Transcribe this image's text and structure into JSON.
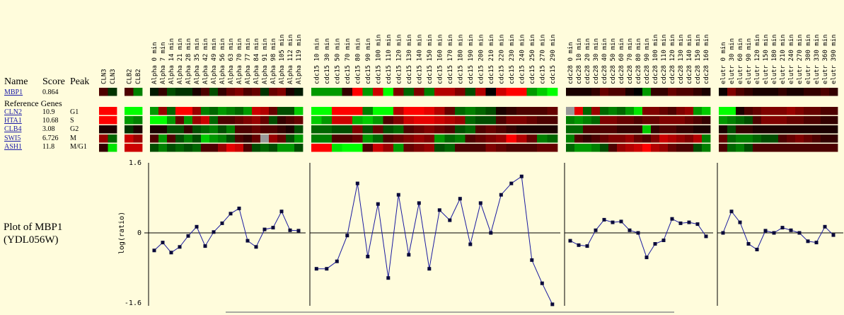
{
  "header": {
    "name": "Name",
    "score": "Score",
    "peak": "Peak"
  },
  "reference_label": "Reference Genes",
  "query_gene": {
    "name": "MBP1",
    "score": "0.864",
    "peak": ""
  },
  "reference_genes": [
    {
      "name": "CLN2",
      "score": "10.9",
      "peak": "G1"
    },
    {
      "name": "HTA1",
      "score": "10.68",
      "peak": "S"
    },
    {
      "name": "CLB4",
      "score": "3.08",
      "peak": "G2"
    },
    {
      "name": "SWI5",
      "score": "6.726",
      "peak": "M"
    },
    {
      "name": "ASH1",
      "score": "11.8",
      "peak": "M/G1"
    }
  ],
  "plot_title": "Plot of MBP1\n(YDL056W)",
  "groups": [
    {
      "id": "cln3",
      "columns": [
        "CLN3",
        "CLN3"
      ]
    },
    {
      "id": "clb2",
      "columns": [
        "CLB2",
        "CLB2"
      ]
    },
    {
      "id": "alpha",
      "columns": [
        "Alpha  0 min",
        "Alpha  7 min",
        "Alpha  14 min",
        "Alpha  21 min",
        "Alpha  28 min",
        "Alpha  35 min",
        "Alpha  42 min",
        "Alpha  49 min",
        "Alpha  56 min",
        "Alpha  63 min",
        "Alpha  70 min",
        "Alpha  77 min",
        "Alpha  84 min",
        "Alpha  91 min",
        "Alpha  98 min",
        "Alpha  105 min",
        "Alpha  112 min",
        "Alpha  119 min"
      ]
    },
    {
      "id": "cdc15",
      "columns": [
        "cdc15  10 min",
        "cdc15  30 min",
        "cdc15  50 min",
        "cdc15  70 min",
        "cdc15  80 min",
        "cdc15  90 min",
        "cdc15  100 min",
        "cdc15  110 min",
        "cdc15  120 min",
        "cdc15  130 min",
        "cdc15  140 min",
        "cdc15  150 min",
        "cdc15  160 min",
        "cdc15  170 min",
        "cdc15  180 min",
        "cdc15  190 min",
        "cdc15  200 min",
        "cdc15  210 min",
        "cdc15  220 min",
        "cdc15  230 min",
        "cdc15  240 min",
        "cdc15  250 min",
        "cdc15  270 min",
        "cdc15  290 min"
      ]
    },
    {
      "id": "cdc28",
      "columns": [
        "cdc28  0 min",
        "cdc28  10 min",
        "cdc28  20 min",
        "cdc28  30 min",
        "cdc28  40 min",
        "cdc28  50 min",
        "cdc28  60 min",
        "cdc28  70 min",
        "cdc28  80 min",
        "cdc28  90 min",
        "cdc28  100 min",
        "cdc28  110 min",
        "cdc28  120 min",
        "cdc28  130 min",
        "cdc28  140 min",
        "cdc28  150 min",
        "cdc28  160 min"
      ]
    },
    {
      "id": "elutr",
      "columns": [
        "elutr  0 min",
        "elutr  30 min",
        "elutr  60 min",
        "elutr  90 min",
        "elutr  120 min",
        "elutr  150 min",
        "elutr  180 min",
        "elutr  210 min",
        "elutr  240 min",
        "elutr  270 min",
        "elutr  300 min",
        "elutr  330 min",
        "elutr  360 min",
        "elutr  390 min"
      ]
    }
  ],
  "heatmap_colors": {
    "low": "#00ff00",
    "zero": "#000000",
    "high": "#ff0000",
    "missing": "#9a9a9a"
  },
  "chart_data": {
    "type": "line",
    "ylabel": "log(ratio)",
    "ylim": [
      -1.6,
      1.6
    ],
    "yticks": [
      "1.6",
      "0",
      "-1.6"
    ],
    "line_color": "#1a1aa0",
    "series": [
      {
        "group": "alpha",
        "values": [
          -0.4,
          -0.22,
          -0.45,
          -0.32,
          -0.07,
          0.14,
          -0.3,
          0.02,
          0.22,
          0.44,
          0.56,
          -0.18,
          -0.32,
          0.08,
          0.12,
          0.49,
          0.06,
          0.05
        ]
      },
      {
        "group": "cdc15",
        "values": [
          -0.82,
          -0.82,
          -0.65,
          -0.06,
          1.13,
          -0.54,
          0.66,
          -1.03,
          0.87,
          -0.5,
          0.68,
          -0.82,
          0.52,
          0.29,
          0.78,
          -0.26,
          0.68,
          0.0,
          0.87,
          1.13,
          1.29,
          -0.62,
          -1.15,
          -1.63
        ]
      },
      {
        "group": "cdc28",
        "values": [
          -0.18,
          -0.28,
          -0.3,
          0.06,
          0.3,
          0.24,
          0.26,
          0.06,
          0.0,
          -0.56,
          -0.25,
          -0.17,
          0.32,
          0.22,
          0.24,
          0.2,
          -0.08
        ]
      },
      {
        "group": "elutr",
        "values": [
          0.0,
          0.49,
          0.24,
          -0.25,
          -0.38,
          0.05,
          0.0,
          0.12,
          0.06,
          0.0,
          -0.19,
          -0.22,
          0.14,
          -0.05
        ]
      }
    ],
    "heatmap": {
      "query": {
        "cln3": [
          0.3,
          -0.2
        ],
        "clb2": [
          0.3,
          -0.5
        ],
        "alpha": [
          -0.1,
          0.2,
          -0.3,
          -0.2,
          -0.2,
          0.1,
          0.3,
          -0.3,
          0.2,
          0.4,
          0.5,
          0.3,
          0.4,
          -0.2,
          0.4,
          0.5,
          0.1,
          -0.1
        ],
        "cdc15": [
          -0.6,
          -0.6,
          -0.6,
          0.2,
          1.0,
          -0.6,
          0.8,
          -1.0,
          0.5,
          -0.4,
          0.5,
          -0.5,
          0.7,
          0.7,
          0.5,
          -0.3,
          0.7,
          0.0,
          0.8,
          1.0,
          1.0,
          -0.6,
          -0.8,
          -1.0
        ],
        "cdc28": [
          0.1,
          0.1,
          0.1,
          0.2,
          0.4,
          0.3,
          0.3,
          0.1,
          0.0,
          -0.6,
          0.2,
          0.2,
          0.4,
          0.3,
          0.3,
          0.2,
          0.1
        ],
        "elutr": [
          0.05,
          0.5,
          0.3,
          0.2,
          0.1,
          0.1,
          0.1,
          0.2,
          0.1,
          0.1,
          0.2,
          0.2,
          0.3,
          0.2
        ]
      },
      "CLN2": {
        "cln3": [
          1.0,
          1.0
        ],
        "clb2": [
          -1.0,
          -1.0
        ],
        "alpha": [
          -0.6,
          0.6,
          -0.4,
          1.0,
          1.0,
          0.6,
          -0.5,
          -0.4,
          -0.6,
          -0.5,
          -0.4,
          -0.6,
          0.8,
          0.7,
          0.4,
          -0.3,
          -0.3,
          -0.8
        ],
        "cdc15": [
          -1.0,
          -1.0,
          1.0,
          1.0,
          1.0,
          -0.5,
          -1.0,
          -1.0,
          0.7,
          1.0,
          1.0,
          0.9,
          0.7,
          0.4,
          -0.4,
          -0.5,
          -0.4,
          -0.3,
          0.1,
          0.2,
          0.3,
          0.3,
          0.3,
          0.4
        ],
        "cdc28": [
          null,
          0.9,
          -0.4,
          0.6,
          -0.4,
          -0.5,
          -0.4,
          -0.6,
          -0.9,
          0.5,
          0.5,
          0.4,
          0.3,
          0.5,
          0.6,
          -0.6,
          -0.8
        ],
        "elutr": [
          -1.0,
          -1.0,
          0.1,
          0.3,
          0.4,
          0.5,
          0.5,
          0.5,
          0.6,
          0.5,
          0.4,
          0.4,
          0.3,
          0.3
        ]
      },
      "HTA1": {
        "cln3": [
          1.0,
          1.0
        ],
        "clb2": [
          -0.6,
          -0.5
        ],
        "alpha": [
          -1.0,
          -1.0,
          -0.6,
          0.4,
          -0.6,
          0.6,
          0.8,
          -0.4,
          0.3,
          0.3,
          0.4,
          0.5,
          0.6,
          0.4,
          -0.3,
          0.2,
          0.3,
          0.4
        ],
        "cdc15": [
          -0.8,
          -0.6,
          0.8,
          0.8,
          -0.7,
          -0.8,
          -0.6,
          0.3,
          0.5,
          0.8,
          0.9,
          0.9,
          0.8,
          0.7,
          0.6,
          -0.4,
          -0.3,
          -0.3,
          0.3,
          0.5,
          0.5,
          0.4,
          0.3,
          0.3
        ],
        "cdc28": [
          -0.5,
          -0.6,
          -0.5,
          -0.4,
          0.5,
          0.5,
          0.4,
          0.4,
          0.3,
          0.4,
          0.4,
          0.5,
          0.5,
          0.5,
          0.4,
          0.3,
          0.2
        ],
        "elutr": [
          -0.6,
          -0.5,
          -0.4,
          -0.3,
          0.3,
          0.5,
          0.5,
          0.5,
          0.4,
          0.4,
          0.3,
          0.3,
          0.2,
          0.2
        ]
      },
      "CLB4": {
        "cln3": [
          0.1,
          0.1
        ],
        "clb2": [
          -0.2,
          0.1
        ],
        "alpha": [
          0.1,
          0.1,
          -0.3,
          -0.3,
          0.2,
          -0.3,
          -0.4,
          -0.5,
          -0.3,
          -0.5,
          0.3,
          0.3,
          0.4,
          0.3,
          0.3,
          0.2,
          0.1,
          -0.3
        ],
        "cdc15": [
          -0.4,
          -0.4,
          -0.3,
          -0.3,
          0.5,
          -0.3,
          0.4,
          -0.3,
          -0.4,
          0.3,
          0.4,
          0.5,
          0.4,
          0.3,
          -0.3,
          -0.4,
          0.3,
          0.4,
          0.3,
          0.2,
          0.1,
          0.1,
          0.1,
          0.1
        ],
        "cdc28": [
          -0.4,
          -0.4,
          0.3,
          0.3,
          0.3,
          0.3,
          0.2,
          0.2,
          0.2,
          -0.8,
          0.2,
          0.3,
          0.3,
          0.2,
          0.2,
          0.1,
          0.1
        ],
        "elutr": [
          0.1,
          -0.3,
          0.2,
          0.2,
          0.1,
          0.1,
          0.1,
          0.1,
          0.1,
          0.1,
          0.1,
          0.1,
          0.1,
          0.1
        ]
      },
      "SWI5": {
        "cln3": [
          0.6,
          -0.4
        ],
        "clb2": [
          0.8,
          0.6
        ],
        "alpha": [
          0.3,
          -0.6,
          0.3,
          -0.3,
          -0.5,
          -0.3,
          -0.8,
          -0.6,
          -0.5,
          -0.3,
          0.3,
          0.2,
          0.4,
          null,
          0.6,
          0.4,
          -0.3,
          -0.6
        ],
        "cdc15": [
          -0.5,
          -0.5,
          0.3,
          0.3,
          0.4,
          -0.6,
          -0.4,
          0.3,
          0.4,
          0.5,
          0.6,
          0.5,
          -0.6,
          -0.4,
          -0.5,
          0.3,
          0.4,
          0.5,
          0.6,
          1.0,
          0.7,
          0.4,
          -0.5,
          -0.4
        ],
        "cdc28": [
          -0.5,
          0.3,
          0.2,
          0.3,
          0.4,
          0.5,
          0.5,
          0.6,
          0.4,
          0.3,
          0.5,
          0.8,
          0.7,
          0.6,
          0.5,
          0.7,
          -0.5
        ],
        "elutr": [
          0.4,
          -0.4,
          -0.5,
          -0.5,
          -0.4,
          -0.3,
          -0.3,
          0.3,
          0.4,
          0.5,
          0.4,
          0.3,
          0.2,
          0.2
        ]
      },
      "ASH1": {
        "cln3": [
          0.2,
          -0.9
        ],
        "clb2": [
          0.8,
          0.8
        ],
        "alpha": [
          -0.3,
          -0.5,
          -0.3,
          -0.4,
          -0.3,
          -0.4,
          0.3,
          0.3,
          0.6,
          0.9,
          0.8,
          0.3,
          -0.3,
          -0.4,
          -0.3,
          -0.6,
          -0.6,
          -0.3
        ],
        "cdc15": [
          1.0,
          1.0,
          -0.9,
          -1.0,
          -1.0,
          0.3,
          0.8,
          0.6,
          -0.6,
          0.4,
          0.5,
          0.6,
          -0.3,
          -0.4,
          0.3,
          0.3,
          0.3,
          0.5,
          0.4,
          0.3,
          0.3,
          0.3,
          0.4,
          0.4
        ],
        "cdc28": [
          -0.4,
          -0.6,
          -0.6,
          -0.5,
          -0.3,
          0.3,
          0.6,
          0.7,
          0.8,
          1.0,
          0.7,
          0.6,
          0.4,
          0.3,
          0.3,
          -0.3,
          -0.5
        ],
        "elutr": [
          0.3,
          -0.4,
          -0.5,
          -0.3,
          0.3,
          0.3,
          0.3,
          0.3,
          0.3,
          0.3,
          0.3,
          0.3,
          0.3,
          0.3
        ]
      }
    }
  }
}
